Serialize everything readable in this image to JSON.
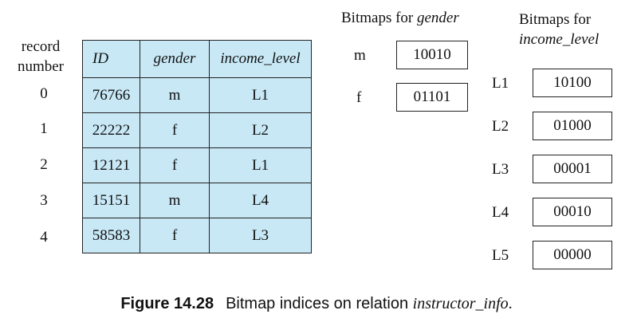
{
  "record_number_header": [
    "record",
    "number"
  ],
  "relation": {
    "headers": [
      "ID",
      "gender",
      "income_level"
    ],
    "rows": [
      {
        "record": "0",
        "id": "76766",
        "gender": "m",
        "income": "L1"
      },
      {
        "record": "1",
        "id": "22222",
        "gender": "f",
        "income": "L2"
      },
      {
        "record": "2",
        "id": "12121",
        "gender": "f",
        "income": "L1"
      },
      {
        "record": "3",
        "id": "15151",
        "gender": "m",
        "income": "L4"
      },
      {
        "record": "4",
        "id": "58583",
        "gender": "f",
        "income": "L3"
      }
    ]
  },
  "gender_bitmaps": {
    "title_prefix": "Bitmaps for ",
    "title_attr": "gender",
    "items": [
      {
        "label": "m",
        "bits": "10010"
      },
      {
        "label": "f",
        "bits": "01101"
      }
    ]
  },
  "income_bitmaps": {
    "title_line1": "Bitmaps for",
    "title_attr": "income_level",
    "items": [
      {
        "label": "L1",
        "bits": "10100"
      },
      {
        "label": "L2",
        "bits": "01000"
      },
      {
        "label": "L3",
        "bits": "00001"
      },
      {
        "label": "L4",
        "bits": "00010"
      },
      {
        "label": "L5",
        "bits": "00000"
      }
    ]
  },
  "caption": {
    "figure": "Figure 14.28",
    "text": "Bitmap indices on relation ",
    "relation_name": "instructor_info",
    "end": "."
  }
}
